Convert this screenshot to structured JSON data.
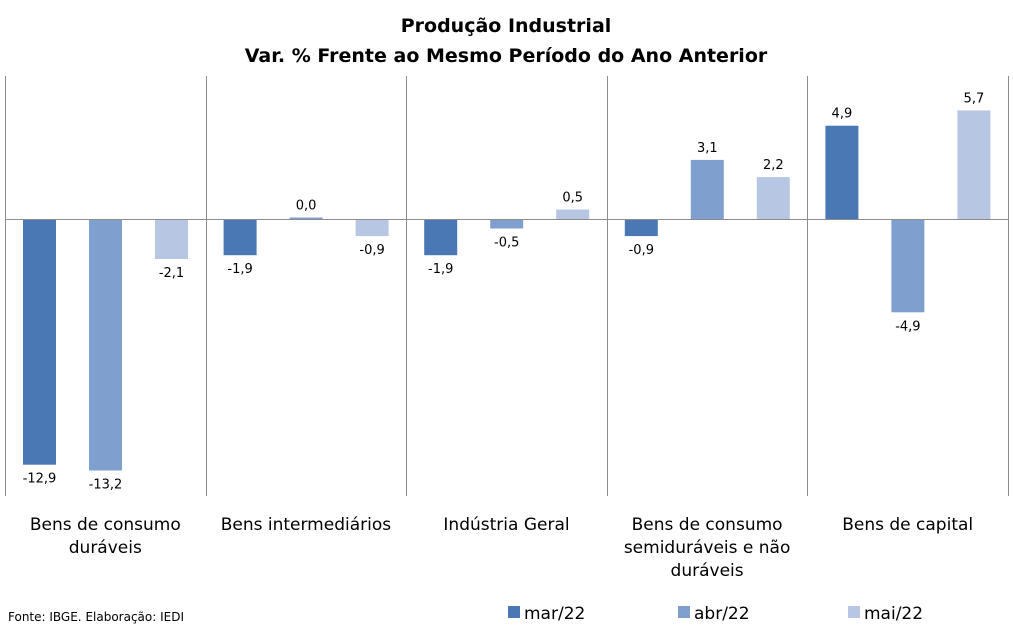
{
  "chart_data": {
    "type": "bar",
    "title": "Produção Industrial",
    "subtitle": "Var. % Frente ao Mesmo Período do Ano Anterior",
    "categories": [
      [
        "Bens de consumo",
        "duráveis"
      ],
      [
        "Bens intermediários"
      ],
      [
        "Indústria Geral"
      ],
      [
        "Bens de consumo",
        "semiduráveis e não",
        "duráveis"
      ],
      [
        "Bens de capital"
      ]
    ],
    "series": [
      {
        "name": "mar/22",
        "color": "#4A78B5",
        "values": [
          -12.9,
          -1.9,
          -1.9,
          -0.9,
          4.9
        ],
        "labels": [
          "-12,9",
          "-1,9",
          "-1,9",
          "-0,9",
          "4,9"
        ]
      },
      {
        "name": "abr/22",
        "color": "#7F9FCF",
        "values": [
          -13.2,
          0.0,
          -0.5,
          3.1,
          -4.9
        ],
        "labels": [
          "-13,2",
          "0,0",
          "-0,5",
          "3,1",
          "-4,9"
        ]
      },
      {
        "name": "mai/22",
        "color": "#B7C7E3",
        "values": [
          -2.1,
          -0.9,
          0.5,
          2.2,
          5.7
        ],
        "labels": [
          "-2,1",
          "-0,9",
          "0,5",
          "2,2",
          "5,7"
        ]
      }
    ],
    "legend_position": "bottom",
    "grid": false,
    "source": "Fonte: IBGE. Elaboração: IEDI"
  }
}
